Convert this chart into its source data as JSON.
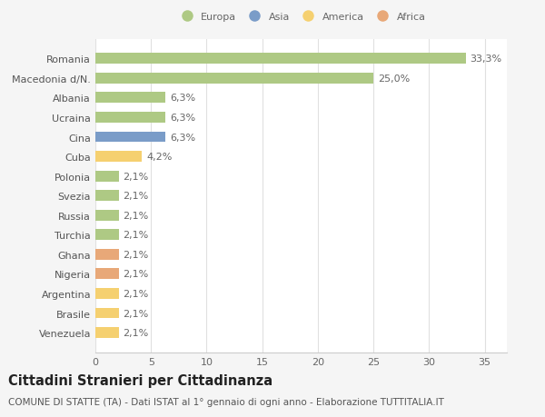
{
  "categories": [
    "Venezuela",
    "Brasile",
    "Argentina",
    "Nigeria",
    "Ghana",
    "Turchia",
    "Russia",
    "Svezia",
    "Polonia",
    "Cuba",
    "Cina",
    "Ucraina",
    "Albania",
    "Macedonia d/N.",
    "Romania"
  ],
  "values": [
    2.1,
    2.1,
    2.1,
    2.1,
    2.1,
    2.1,
    2.1,
    2.1,
    2.1,
    4.2,
    6.3,
    6.3,
    6.3,
    25.0,
    33.3
  ],
  "labels": [
    "2,1%",
    "2,1%",
    "2,1%",
    "2,1%",
    "2,1%",
    "2,1%",
    "2,1%",
    "2,1%",
    "2,1%",
    "4,2%",
    "6,3%",
    "6,3%",
    "6,3%",
    "25,0%",
    "33,3%"
  ],
  "colors": [
    "#f5d070",
    "#f5d070",
    "#f5d070",
    "#e8a878",
    "#e8a878",
    "#aec984",
    "#aec984",
    "#aec984",
    "#aec984",
    "#f5d070",
    "#7a9cc8",
    "#aec984",
    "#aec984",
    "#aec984",
    "#aec984"
  ],
  "legend_labels": [
    "Europa",
    "Asia",
    "America",
    "Africa"
  ],
  "legend_colors": [
    "#aec984",
    "#7a9cc8",
    "#f5d070",
    "#e8a878"
  ],
  "title": "Cittadini Stranieri per Cittadinanza",
  "subtitle": "COMUNE DI STATTE (TA) - Dati ISTAT al 1° gennaio di ogni anno - Elaborazione TUTTITALIA.IT",
  "xlim": [
    0,
    37
  ],
  "xticks": [
    0,
    5,
    10,
    15,
    20,
    25,
    30,
    35
  ],
  "background_color": "#f5f5f5",
  "plot_background": "#ffffff",
  "grid_color": "#e0e0e0",
  "bar_height": 0.55,
  "label_fontsize": 8,
  "tick_fontsize": 8,
  "title_fontsize": 10.5,
  "subtitle_fontsize": 7.5
}
